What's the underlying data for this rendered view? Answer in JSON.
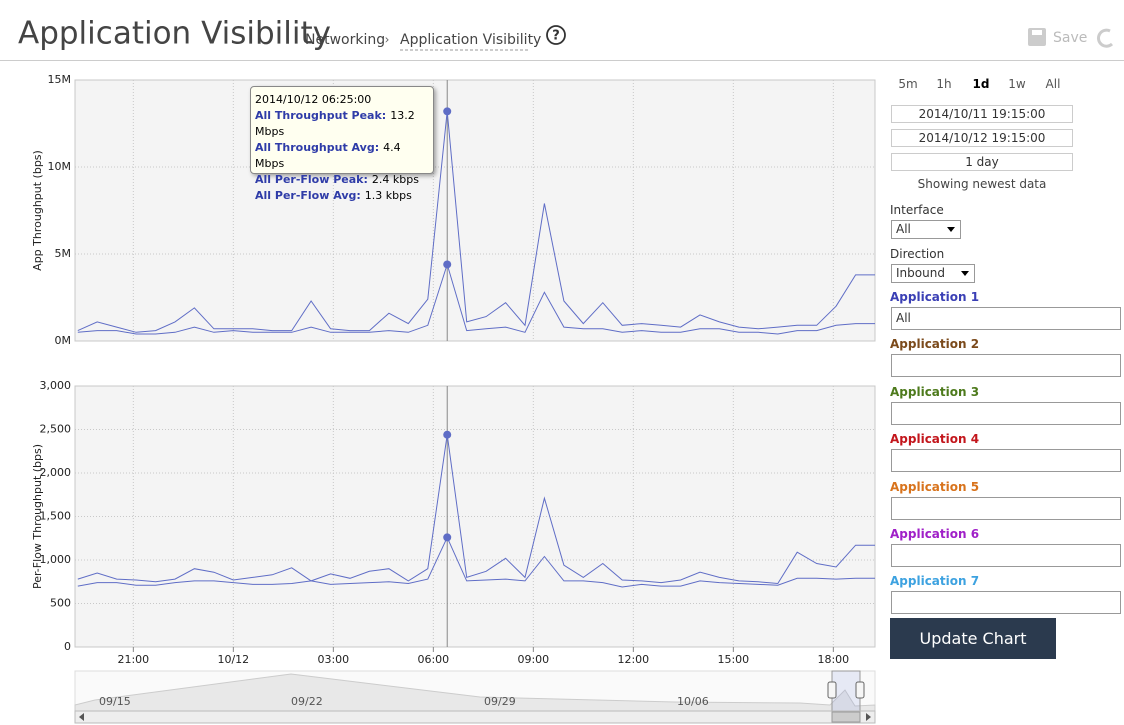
{
  "header": {
    "title": "Application Visibility",
    "breadcrumb": [
      "Networking",
      "Application Visibility"
    ],
    "help": "?",
    "save": "Save"
  },
  "chart_data": [
    {
      "type": "line",
      "ylabel": "App Throughput (bps)",
      "x": [
        "2014/10/11 19:20",
        "2014/10/11 19:55",
        "2014/10/11 20:30",
        "2014/10/11 21:05",
        "2014/10/11 21:40",
        "2014/10/11 22:15",
        "2014/10/11 22:50",
        "2014/10/11 23:25",
        "2014/10/12 00:00",
        "2014/10/12 00:35",
        "2014/10/12 01:10",
        "2014/10/12 01:45",
        "2014/10/12 02:20",
        "2014/10/12 02:55",
        "2014/10/12 03:30",
        "2014/10/12 04:05",
        "2014/10/12 04:40",
        "2014/10/12 05:15",
        "2014/10/12 05:50",
        "2014/10/12 06:25",
        "2014/10/12 07:00",
        "2014/10/12 07:35",
        "2014/10/12 08:10",
        "2014/10/12 08:45",
        "2014/10/12 09:20",
        "2014/10/12 09:55",
        "2014/10/12 10:30",
        "2014/10/12 11:05",
        "2014/10/12 11:40",
        "2014/10/12 12:15",
        "2014/10/12 12:50",
        "2014/10/12 13:25",
        "2014/10/12 14:00",
        "2014/10/12 14:35",
        "2014/10/12 15:10",
        "2014/10/12 15:45",
        "2014/10/12 16:20",
        "2014/10/12 16:55",
        "2014/10/12 17:30",
        "2014/10/12 18:05",
        "2014/10/12 18:40",
        "2014/10/12 19:15"
      ],
      "xlim": [
        "2014/10/11 19:15",
        "2014/10/12 19:15"
      ],
      "ylim": [
        0,
        15000000
      ],
      "yticks": [
        {
          "value": 0,
          "label": "0M"
        },
        {
          "value": 5000000,
          "label": "5M"
        },
        {
          "value": 10000000,
          "label": "10M"
        },
        {
          "value": 15000000,
          "label": "15M"
        }
      ],
      "grid": true,
      "series": [
        {
          "color": "#5f6dc6",
          "values": [
            600000,
            1100000,
            800000,
            500000,
            600000,
            1100000,
            1900000,
            700000,
            700000,
            700000,
            600000,
            600000,
            2300000,
            700000,
            600000,
            600000,
            1600000,
            1000000,
            2400000,
            13200000,
            1100000,
            1400000,
            2200000,
            900000,
            7900000,
            2300000,
            1000000,
            2200000,
            900000,
            1000000,
            900000,
            800000,
            1500000,
            1100000,
            800000,
            700000,
            800000,
            900000,
            900000,
            2000000,
            3800000,
            3800000
          ]
        },
        {
          "color": "#5f6dc6",
          "values": [
            500000,
            600000,
            600000,
            400000,
            400000,
            500000,
            800000,
            500000,
            600000,
            500000,
            500000,
            500000,
            800000,
            500000,
            500000,
            500000,
            600000,
            500000,
            900000,
            4400000,
            600000,
            700000,
            800000,
            500000,
            2800000,
            800000,
            700000,
            700000,
            500000,
            600000,
            500000,
            500000,
            700000,
            700000,
            500000,
            500000,
            400000,
            600000,
            600000,
            900000,
            1000000,
            1000000
          ]
        }
      ]
    },
    {
      "type": "line",
      "ylabel": "Per-Flow Throughput (bps)",
      "x": [
        "2014/10/11 19:20",
        "2014/10/11 19:55",
        "2014/10/11 20:30",
        "2014/10/11 21:05",
        "2014/10/11 21:40",
        "2014/10/11 22:15",
        "2014/10/11 22:50",
        "2014/10/11 23:25",
        "2014/10/12 00:00",
        "2014/10/12 00:35",
        "2014/10/12 01:10",
        "2014/10/12 01:45",
        "2014/10/12 02:20",
        "2014/10/12 02:55",
        "2014/10/12 03:30",
        "2014/10/12 04:05",
        "2014/10/12 04:40",
        "2014/10/12 05:15",
        "2014/10/12 05:50",
        "2014/10/12 06:25",
        "2014/10/12 07:00",
        "2014/10/12 07:35",
        "2014/10/12 08:10",
        "2014/10/12 08:45",
        "2014/10/12 09:20",
        "2014/10/12 09:55",
        "2014/10/12 10:30",
        "2014/10/12 11:05",
        "2014/10/12 11:40",
        "2014/10/12 12:15",
        "2014/10/12 12:50",
        "2014/10/12 13:25",
        "2014/10/12 14:00",
        "2014/10/12 14:35",
        "2014/10/12 15:10",
        "2014/10/12 15:45",
        "2014/10/12 16:20",
        "2014/10/12 16:55",
        "2014/10/12 17:30",
        "2014/10/12 18:05",
        "2014/10/12 18:40",
        "2014/10/12 19:15"
      ],
      "xlim": [
        "2014/10/11 19:15",
        "2014/10/12 19:15"
      ],
      "xticks": [
        {
          "value": "2014/10/11 21:00",
          "label": "21:00"
        },
        {
          "value": "2014/10/12 00:00",
          "label": "10/12"
        },
        {
          "value": "2014/10/12 03:00",
          "label": "03:00"
        },
        {
          "value": "2014/10/12 06:00",
          "label": "06:00"
        },
        {
          "value": "2014/10/12 09:00",
          "label": "09:00"
        },
        {
          "value": "2014/10/12 12:00",
          "label": "12:00"
        },
        {
          "value": "2014/10/12 15:00",
          "label": "15:00"
        },
        {
          "value": "2014/10/12 18:00",
          "label": "18:00"
        }
      ],
      "ylim": [
        0,
        3000
      ],
      "yticks": [
        0,
        500,
        {
          "value": 1000,
          "label": "1,000"
        },
        {
          "value": 1500,
          "label": "1,500"
        },
        {
          "value": 2000,
          "label": "2,000"
        },
        {
          "value": 2500,
          "label": "2,500"
        },
        {
          "value": 3000,
          "label": "3,000"
        }
      ],
      "grid": true,
      "series": [
        {
          "color": "#5f6dc6",
          "values": [
            780,
            850,
            780,
            770,
            750,
            780,
            900,
            860,
            770,
            800,
            830,
            910,
            760,
            840,
            790,
            870,
            900,
            760,
            900,
            2440,
            800,
            870,
            1020,
            800,
            1710,
            940,
            800,
            960,
            770,
            760,
            740,
            770,
            860,
            800,
            760,
            750,
            730,
            1090,
            960,
            920,
            1170,
            1170
          ]
        },
        {
          "color": "#5f6dc6",
          "values": [
            700,
            740,
            740,
            710,
            710,
            740,
            760,
            760,
            740,
            720,
            720,
            730,
            760,
            720,
            730,
            740,
            750,
            730,
            780,
            1260,
            760,
            770,
            780,
            760,
            1040,
            760,
            760,
            740,
            690,
            720,
            700,
            700,
            760,
            740,
            730,
            720,
            710,
            790,
            790,
            780,
            790,
            790
          ]
        }
      ]
    }
  ],
  "tooltip": {
    "time": "2014/10/12 06:25:00",
    "rows": [
      {
        "label": "All Throughput Peak:",
        "value": "13.2 Mbps"
      },
      {
        "label": "All Throughput Avg:",
        "value": "4.4 Mbps"
      },
      {
        "label": "All Per-Flow Peak:",
        "value": "2.4 kbps"
      },
      {
        "label": "All Per-Flow Avg:",
        "value": "1.3 kbps"
      }
    ]
  },
  "navigator": {
    "labels": [
      "09/15",
      "09/22",
      "09/29",
      "10/06"
    ]
  },
  "controls": {
    "ranges": [
      "5m",
      "1h",
      "1d",
      "1w",
      "All"
    ],
    "selected_range": "1d",
    "start": "2014/10/11 19:15:00",
    "end": "2014/10/12 19:15:00",
    "duration": "1 day",
    "status": "Showing newest data",
    "interface": {
      "label": "Interface",
      "value": "All"
    },
    "direction": {
      "label": "Direction",
      "value": "Inbound"
    },
    "applications": [
      {
        "name": "Application 1",
        "color": "#3a3fb5",
        "value": "All"
      },
      {
        "name": "Application 2",
        "color": "#7b4a1b"
      },
      {
        "name": "Application 3",
        "color": "#4d7a1c"
      },
      {
        "name": "Application 4",
        "color": "#c3161c"
      },
      {
        "name": "Application 5",
        "color": "#d8731c"
      },
      {
        "name": "Application 6",
        "color": "#a020c8"
      },
      {
        "name": "Application 7",
        "color": "#3da2e0"
      }
    ],
    "button": "Update Chart"
  }
}
